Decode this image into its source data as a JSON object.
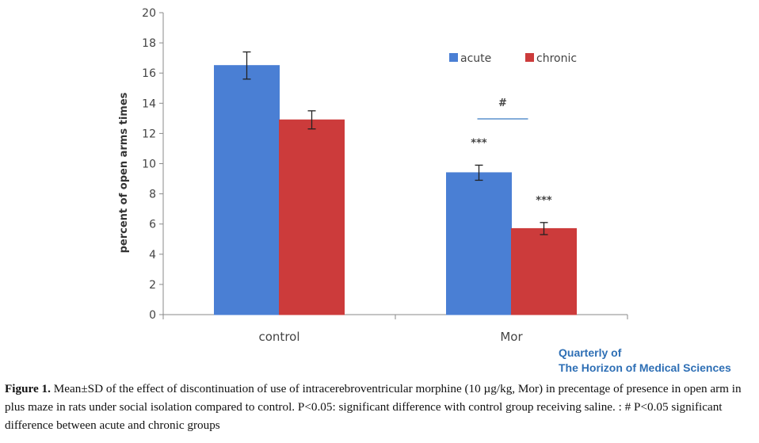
{
  "chart_data": {
    "type": "bar",
    "categories": [
      "control",
      "Mor"
    ],
    "series": [
      {
        "name": "acute",
        "color": "#4a7fd4",
        "values": [
          16.5,
          9.4
        ],
        "errors": [
          0.9,
          0.5
        ]
      },
      {
        "name": "chronic",
        "color": "#cc3b3b",
        "values": [
          12.9,
          5.7
        ],
        "errors": [
          0.6,
          0.4
        ]
      }
    ],
    "ylabel": "percent of open arms times",
    "ylim": [
      0,
      20
    ],
    "yticks": [
      "0",
      "2",
      "4",
      "6",
      "8",
      "10",
      "12",
      "14",
      "16",
      "18",
      "20"
    ],
    "grid": false,
    "legend": "top-right",
    "annotations": [
      {
        "text": "***",
        "category": "Mor",
        "series": "acute"
      },
      {
        "text": "***",
        "category": "Mor",
        "series": "chronic"
      },
      {
        "text": "#",
        "category": "Mor",
        "between": [
          "acute",
          "chronic"
        ]
      }
    ]
  },
  "journal": {
    "line1": "Quarterly of",
    "line2": "The Horizon of Medical Sciences"
  },
  "caption": {
    "label": "Figure 1.",
    "text": "Mean±SD of the effect of discontinuation of use of intracerebroventricular morphine (10 µg/kg, Mor) in precentage of presence in open arm in plus maze in rats under social isolation compared to control. P<0.05: significant difference with control group receiving saline. : # P<0.05 significant difference between acute and chronic groups"
  }
}
